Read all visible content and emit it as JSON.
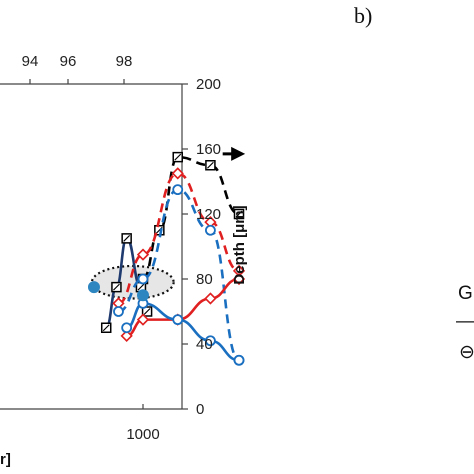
{
  "panel_b_label": "b)",
  "panel_b_fragments": [
    "G",
    "—",
    "⊖"
  ],
  "chart_data": {
    "type": "line",
    "title": "",
    "x_bottom": {
      "ticks": [
        1000
      ],
      "label_fragment": "r]",
      "range": [
        650,
        1310
      ]
    },
    "x_top": {
      "ticks": [
        94,
        96,
        98
      ]
    },
    "y_right": {
      "label": "Depth [μm]",
      "range": [
        0,
        200
      ],
      "ticks": [
        0,
        40,
        80,
        120,
        160,
        200
      ]
    },
    "series": [
      {
        "color": "#000000",
        "style": "dashed",
        "marker": "square-dot",
        "x": [
          1000,
          1040,
          1085,
          1165,
          1235
        ],
        "y": [
          80,
          110,
          155,
          150,
          120
        ]
      },
      {
        "color": "#1f3a6e",
        "style": "solid",
        "marker": "square-dot",
        "x": [
          910,
          935,
          960,
          995,
          1010
        ],
        "y": [
          50,
          75,
          105,
          75,
          60
        ]
      },
      {
        "color": "#e02020",
        "style": "dashed",
        "marker": "diamond",
        "x": [
          940,
          1000,
          1085,
          1165,
          1235
        ],
        "y": [
          65,
          95,
          145,
          115,
          85
        ]
      },
      {
        "color": "#1a6fc0",
        "style": "dashed",
        "marker": "circle",
        "x": [
          940,
          1000,
          1085,
          1165,
          1235
        ],
        "y": [
          60,
          80,
          135,
          110,
          30
        ]
      },
      {
        "color": "#e02020",
        "style": "solid",
        "marker": "diamond",
        "x": [
          960,
          1000,
          1085,
          1165,
          1235
        ],
        "y": [
          45,
          55,
          55,
          68,
          80
        ]
      },
      {
        "color": "#1a6fc0",
        "style": "solid",
        "marker": "circle",
        "x": [
          960,
          1000,
          1085,
          1165,
          1235
        ],
        "y": [
          50,
          65,
          55,
          42,
          30
        ]
      },
      {
        "color": "#2e86c1",
        "style": "none",
        "marker": "filled-circle",
        "x": [
          880,
          1000
        ],
        "y": [
          75,
          70
        ]
      }
    ],
    "annotations": [
      {
        "type": "dotted-ellipse",
        "center": [
          975,
          78
        ],
        "radius_x": 100,
        "radius_y": 10
      },
      {
        "type": "arrow",
        "from": [
          1195,
          157
        ],
        "to": [
          1250,
          157
        ],
        "style": "dashed",
        "direction": "right"
      }
    ]
  }
}
